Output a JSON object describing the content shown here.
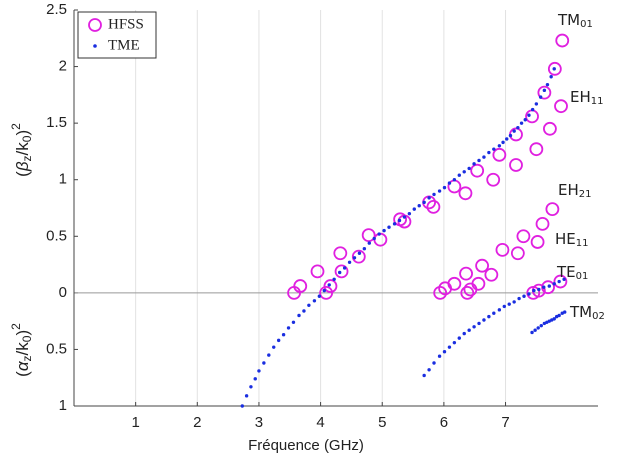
{
  "chart_data": {
    "type": "scatter",
    "xlabel": "Fréquence (GHz)",
    "ylabel_upper": {
      "open": "(",
      "sym": "β",
      "sub1": "z",
      "mid": "/k",
      "sub2": "0",
      "close": ")",
      "sup": "2"
    },
    "ylabel_lower": {
      "open": "(",
      "sym": "α",
      "sub1": "z",
      "mid": "/k",
      "sub2": "0",
      "close": ")",
      "sup": "2"
    },
    "xlim": [
      0,
      8.5
    ],
    "ylim": [
      -1,
      2.5
    ],
    "xticks": [
      1,
      2,
      3,
      4,
      5,
      6,
      7
    ],
    "yticks": [
      {
        "value": -1,
        "label": "1"
      },
      {
        "value": -0.5,
        "label": "0.5"
      },
      0,
      0.5,
      1,
      1.5,
      2,
      2.5
    ],
    "grid": true,
    "legend": "upper left",
    "annotations": [
      {
        "text": "TM",
        "sub": "01"
      },
      {
        "text": "EH",
        "sub": "11"
      },
      {
        "text": "EH",
        "sub": "21"
      },
      {
        "text": "HE",
        "sub": "11"
      },
      {
        "text": "TE",
        "sub": "01"
      },
      {
        "text": "TM",
        "sub": "02"
      }
    ],
    "series": [
      {
        "name": "HFSS",
        "color": "#e020e0",
        "marker": "circle",
        "x": [
          3.57,
          3.67,
          3.95,
          4.09,
          4.16,
          4.34,
          4.32,
          4.62,
          4.78,
          4.97,
          5.29,
          5.36,
          5.76,
          5.83,
          6.17,
          6.35,
          6.54,
          6.8,
          6.9,
          7.17,
          7.17,
          7.43,
          7.5,
          7.63,
          7.72,
          7.8,
          7.9,
          7.92,
          5.94,
          6.02,
          6.17,
          6.36,
          6.38,
          6.43,
          6.62,
          6.56,
          6.77,
          6.95,
          7.2,
          7.29,
          7.52,
          7.6,
          7.76,
          7.45,
          7.54,
          7.69,
          7.89
        ],
        "y": [
          0,
          0.06,
          0.19,
          0,
          0.06,
          0.19,
          0.35,
          0.32,
          0.51,
          0.47,
          0.65,
          0.63,
          0.8,
          0.76,
          0.94,
          0.88,
          1.08,
          1.0,
          1.22,
          1.13,
          1.4,
          1.56,
          1.27,
          1.77,
          1.45,
          1.98,
          1.65,
          2.23,
          0,
          0.04,
          0.08,
          0.17,
          0,
          0.03,
          0.24,
          0.08,
          0.16,
          0.38,
          0.35,
          0.5,
          0.45,
          0.61,
          0.74,
          0,
          0.02,
          0.05,
          0.1
        ]
      },
      {
        "name": "TME",
        "color": "#1a2ee0",
        "marker": "dot",
        "x": [
          2.73,
          2.8,
          2.87,
          2.94,
          3.0,
          3.08,
          3.16,
          3.24,
          3.32,
          3.4,
          3.48,
          3.56,
          3.65,
          3.73,
          3.81,
          3.9,
          3.98,
          4.06,
          4.14,
          4.22,
          4.31,
          4.39,
          4.47,
          4.55,
          4.63,
          4.71,
          4.79,
          4.87,
          4.95,
          5.03,
          5.11,
          5.2,
          5.28,
          5.36,
          5.44,
          5.52,
          5.6,
          5.68,
          5.76,
          5.84,
          5.93,
          6.01,
          6.09,
          6.17,
          6.25,
          6.33,
          6.41,
          6.49,
          6.57,
          6.65,
          6.73,
          6.81,
          6.9,
          6.96,
          7.02,
          7.08,
          7.14,
          7.2,
          7.26,
          7.32,
          7.38,
          7.44,
          7.5,
          7.57,
          7.63,
          7.68,
          7.74,
          7.79,
          5.68,
          5.76,
          5.84,
          5.93,
          6.01,
          6.09,
          6.17,
          6.25,
          6.33,
          6.41,
          6.49,
          6.57,
          6.65,
          6.73,
          6.81,
          6.9,
          6.98,
          7.06,
          7.14,
          7.22,
          7.3,
          7.38,
          7.46,
          7.54,
          7.62,
          7.71,
          7.79,
          7.87,
          7.95,
          7.43,
          7.48,
          7.53,
          7.58,
          7.63,
          7.67,
          7.71,
          7.75,
          7.79,
          7.83,
          7.87,
          7.92,
          7.96
        ],
        "y": [
          -1.0,
          -0.91,
          -0.83,
          -0.76,
          -0.69,
          -0.62,
          -0.55,
          -0.48,
          -0.42,
          -0.37,
          -0.31,
          -0.26,
          -0.2,
          -0.16,
          -0.11,
          -0.07,
          -0.03,
          0.02,
          0.07,
          0.12,
          0.18,
          0.22,
          0.27,
          0.31,
          0.35,
          0.39,
          0.44,
          0.48,
          0.52,
          0.55,
          0.58,
          0.61,
          0.64,
          0.67,
          0.7,
          0.74,
          0.77,
          0.8,
          0.84,
          0.87,
          0.9,
          0.93,
          0.97,
          1.0,
          1.04,
          1.07,
          1.1,
          1.14,
          1.17,
          1.2,
          1.24,
          1.27,
          1.3,
          1.33,
          1.36,
          1.39,
          1.43,
          1.46,
          1.5,
          1.53,
          1.57,
          1.62,
          1.67,
          1.73,
          1.79,
          1.84,
          1.91,
          1.98,
          -0.73,
          -0.68,
          -0.62,
          -0.56,
          -0.52,
          -0.48,
          -0.44,
          -0.4,
          -0.36,
          -0.33,
          -0.3,
          -0.27,
          -0.24,
          -0.21,
          -0.18,
          -0.15,
          -0.12,
          -0.1,
          -0.08,
          -0.05,
          -0.03,
          -0.01,
          0.02,
          0.03,
          0.05,
          0.06,
          0.08,
          0.1,
          0.12,
          -0.35,
          -0.33,
          -0.31,
          -0.29,
          -0.27,
          -0.26,
          -0.25,
          -0.24,
          -0.23,
          -0.21,
          -0.2,
          -0.18,
          -0.17
        ]
      }
    ]
  }
}
